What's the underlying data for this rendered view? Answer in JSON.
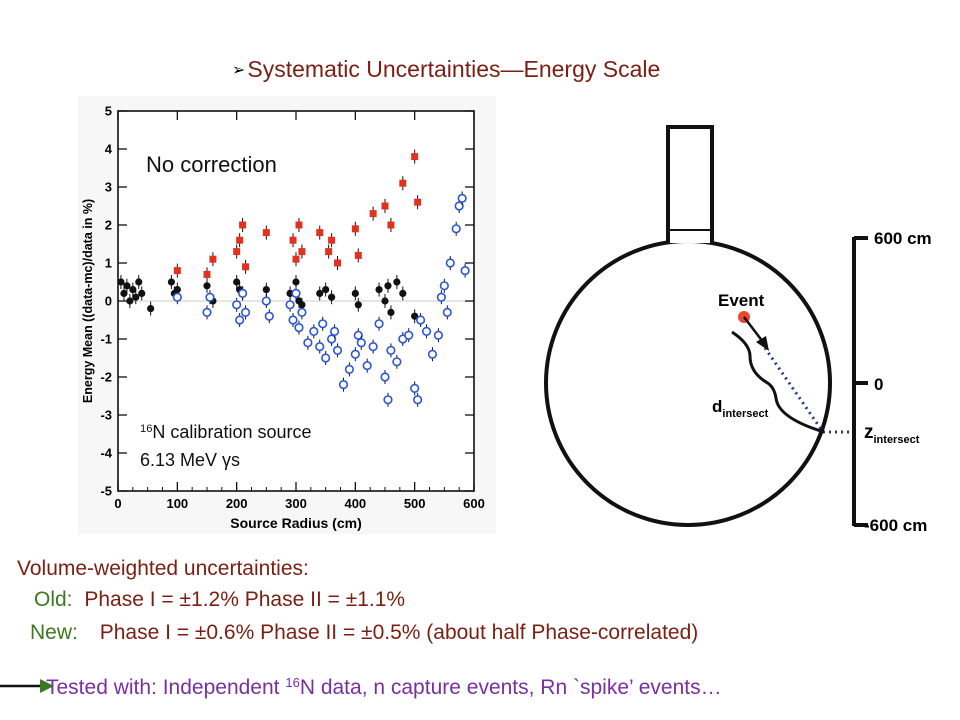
{
  "slide": {
    "title_bullet": "➢",
    "title": "Systematic Uncertainties—Energy Scale"
  },
  "chart_data": {
    "type": "scatter",
    "title": "",
    "annotation": "No correction",
    "source_label_sup": "16",
    "source_label_rest": "N calibration source",
    "energy_label": "6.13 MeV γs",
    "xlabel": "Source Radius (cm)",
    "ylabel": "Energy Mean ((data-mc)/data in %)",
    "xlim": [
      0,
      600
    ],
    "ylim": [
      -5,
      5
    ],
    "xticks": [
      0,
      100,
      200,
      300,
      400,
      500,
      600
    ],
    "yticks": [
      -5,
      -4,
      -3,
      -2,
      -1,
      0,
      1,
      2,
      3,
      4,
      5
    ],
    "colors": {
      "red": "#e0331f",
      "black": "#111111",
      "blue": "#2b55d9"
    },
    "series": [
      {
        "marker": "red-filled-square",
        "x": [
          100,
          150,
          160,
          200,
          205,
          210,
          215,
          250,
          295,
          300,
          305,
          310,
          340,
          355,
          360,
          370,
          400,
          405,
          430,
          450,
          460,
          480,
          500,
          505
        ],
        "values": [
          0.8,
          0.7,
          1.1,
          1.3,
          1.6,
          2.0,
          0.9,
          1.8,
          1.6,
          1.1,
          2.0,
          1.3,
          1.8,
          1.3,
          1.6,
          1.0,
          1.9,
          1.2,
          2.3,
          2.5,
          2.0,
          3.1,
          3.8,
          2.6
        ]
      },
      {
        "marker": "black-filled-circle",
        "x": [
          5,
          10,
          15,
          20,
          25,
          30,
          35,
          40,
          55,
          90,
          95,
          100,
          150,
          160,
          200,
          205,
          210,
          250,
          290,
          300,
          305,
          310,
          340,
          350,
          360,
          400,
          405,
          440,
          450,
          455,
          460,
          470,
          480,
          500
        ],
        "values": [
          0.5,
          0.2,
          0.4,
          0.0,
          0.3,
          0.1,
          0.5,
          0.2,
          -0.2,
          0.5,
          0.2,
          0.3,
          0.4,
          0.0,
          0.5,
          0.3,
          0.2,
          0.3,
          0.2,
          0.5,
          0.0,
          -0.1,
          0.2,
          0.3,
          0.1,
          0.2,
          -0.1,
          0.3,
          0.0,
          0.4,
          -0.3,
          0.5,
          0.2,
          -0.4
        ]
      },
      {
        "marker": "blue-open-circle",
        "x": [
          100,
          150,
          155,
          200,
          205,
          210,
          215,
          250,
          255,
          290,
          295,
          300,
          305,
          310,
          320,
          330,
          340,
          345,
          350,
          360,
          365,
          370,
          380,
          390,
          400,
          405,
          410,
          420,
          430,
          440,
          450,
          455,
          460,
          470,
          480,
          490,
          500,
          505,
          510,
          520,
          530,
          540,
          545,
          550,
          555,
          560,
          570,
          575,
          580,
          585
        ],
        "values": [
          0.1,
          -0.3,
          0.1,
          -0.1,
          -0.5,
          0.2,
          -0.3,
          0.0,
          -0.4,
          -0.1,
          -0.5,
          0.2,
          -0.7,
          -0.3,
          -1.1,
          -0.8,
          -1.2,
          -0.6,
          -1.5,
          -1.0,
          -0.8,
          -1.3,
          -2.2,
          -1.8,
          -1.4,
          -0.9,
          -1.1,
          -1.7,
          -1.2,
          -0.6,
          -2.0,
          -2.6,
          -1.3,
          -1.6,
          -1.0,
          -0.9,
          -2.3,
          -2.6,
          -0.5,
          -0.8,
          -1.4,
          -0.9,
          0.1,
          0.4,
          -0.3,
          1.0,
          1.9,
          2.5,
          2.7,
          0.8
        ]
      }
    ]
  },
  "diagram": {
    "event_label": "Event",
    "d_label": "d",
    "d_sub": "intersect",
    "z_label": "z",
    "z_sub": "intersect",
    "scale_top": "600 cm",
    "scale_mid": "0",
    "scale_bottom": "-600 cm",
    "colors": {
      "event_dot": "#e8482c",
      "dotted_line": "#1f3a8a"
    }
  },
  "summary": {
    "heading": "Volume-weighted uncertainties:",
    "old_label": "Old:",
    "old_values": "Phase I = ±1.2%  Phase II = ±1.1%",
    "new_label": "New:",
    "new_values": "Phase I = ±0.6%  Phase II = ±0.5% (about half Phase-correlated)",
    "tested_prefix": "Tested with: Independent ",
    "tested_sup": "16",
    "tested_rest": "N data, n capture events, Rn `spike’ events…"
  }
}
